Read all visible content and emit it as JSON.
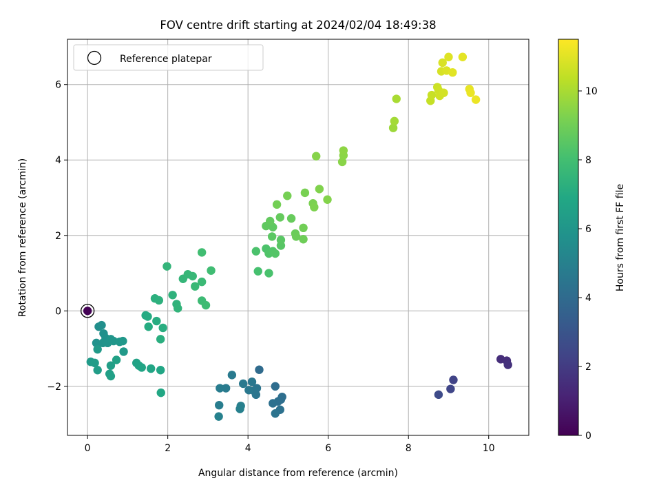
{
  "chart_data": {
    "type": "scatter",
    "title": "FOV centre drift starting at 2024/02/04 18:49:38",
    "xlabel": "Angular distance from reference (arcmin)",
    "ylabel": "Rotation from reference (arcmin)",
    "xlim": [
      -0.5,
      11.0
    ],
    "ylim": [
      -3.3,
      7.2
    ],
    "xticks": [
      0,
      2,
      4,
      6,
      8,
      10
    ],
    "yticks": [
      -2,
      0,
      2,
      4,
      6
    ],
    "grid": true,
    "legend": {
      "position": "top-left",
      "entries": [
        "Reference platepar"
      ]
    },
    "reference_point": {
      "x": 0,
      "y": 0
    },
    "colorbar": {
      "label": "Hours from first FF file",
      "colormap": "viridis",
      "range": [
        0,
        11.5
      ],
      "ticks": [
        0,
        2,
        4,
        6,
        8,
        10
      ]
    },
    "points": [
      {
        "x": 0.0,
        "y": 0.0,
        "c": 0.05
      },
      {
        "x": 10.3,
        "y": -1.28,
        "c": 1.5
      },
      {
        "x": 10.45,
        "y": -1.32,
        "c": 1.55
      },
      {
        "x": 10.48,
        "y": -1.43,
        "c": 1.6
      },
      {
        "x": 9.12,
        "y": -1.83,
        "c": 2.3
      },
      {
        "x": 9.05,
        "y": -2.07,
        "c": 2.4
      },
      {
        "x": 8.75,
        "y": -2.22,
        "c": 2.6
      },
      {
        "x": 4.28,
        "y": -1.56,
        "c": 4.0
      },
      {
        "x": 4.68,
        "y": -2.0,
        "c": 4.1
      },
      {
        "x": 4.82,
        "y": -2.35,
        "c": 4.15
      },
      {
        "x": 4.85,
        "y": -2.28,
        "c": 4.2
      },
      {
        "x": 4.75,
        "y": -2.4,
        "c": 4.2
      },
      {
        "x": 4.62,
        "y": -2.45,
        "c": 4.25
      },
      {
        "x": 4.8,
        "y": -2.62,
        "c": 4.3
      },
      {
        "x": 4.68,
        "y": -2.72,
        "c": 4.35
      },
      {
        "x": 4.22,
        "y": -2.05,
        "c": 4.4
      },
      {
        "x": 4.2,
        "y": -2.22,
        "c": 4.45
      },
      {
        "x": 4.15,
        "y": -2.12,
        "c": 4.5
      },
      {
        "x": 4.1,
        "y": -1.88,
        "c": 4.55
      },
      {
        "x": 4.02,
        "y": -2.1,
        "c": 4.6
      },
      {
        "x": 3.88,
        "y": -1.93,
        "c": 4.65
      },
      {
        "x": 3.6,
        "y": -1.7,
        "c": 4.7
      },
      {
        "x": 3.45,
        "y": -2.05,
        "c": 4.75
      },
      {
        "x": 3.3,
        "y": -2.05,
        "c": 4.8
      },
      {
        "x": 3.28,
        "y": -2.5,
        "c": 4.85
      },
      {
        "x": 3.82,
        "y": -2.52,
        "c": 4.9
      },
      {
        "x": 3.8,
        "y": -2.6,
        "c": 4.95
      },
      {
        "x": 3.27,
        "y": -2.8,
        "c": 5.0
      },
      {
        "x": 0.28,
        "y": -0.42,
        "c": 5.6
      },
      {
        "x": 0.35,
        "y": -0.38,
        "c": 5.65
      },
      {
        "x": 0.4,
        "y": -0.6,
        "c": 5.7
      },
      {
        "x": 0.45,
        "y": -0.72,
        "c": 5.75
      },
      {
        "x": 0.22,
        "y": -0.85,
        "c": 5.8
      },
      {
        "x": 0.38,
        "y": -0.85,
        "c": 5.85
      },
      {
        "x": 0.5,
        "y": -0.85,
        "c": 5.9
      },
      {
        "x": 0.58,
        "y": -0.75,
        "c": 5.95
      },
      {
        "x": 0.65,
        "y": -0.8,
        "c": 6.0
      },
      {
        "x": 0.8,
        "y": -0.82,
        "c": 6.05
      },
      {
        "x": 0.88,
        "y": -0.8,
        "c": 6.1
      },
      {
        "x": 0.9,
        "y": -1.08,
        "c": 6.15
      },
      {
        "x": 0.25,
        "y": -1.02,
        "c": 6.2
      },
      {
        "x": 0.08,
        "y": -1.35,
        "c": 6.25
      },
      {
        "x": 0.18,
        "y": -1.38,
        "c": 6.3
      },
      {
        "x": 0.25,
        "y": -1.57,
        "c": 6.35
      },
      {
        "x": 0.58,
        "y": -1.45,
        "c": 6.4
      },
      {
        "x": 0.55,
        "y": -1.67,
        "c": 6.45
      },
      {
        "x": 0.58,
        "y": -1.73,
        "c": 6.5
      },
      {
        "x": 0.72,
        "y": -1.3,
        "c": 6.55
      },
      {
        "x": 1.22,
        "y": -1.38,
        "c": 6.6
      },
      {
        "x": 1.28,
        "y": -1.45,
        "c": 6.65
      },
      {
        "x": 1.35,
        "y": -1.5,
        "c": 6.7
      },
      {
        "x": 1.58,
        "y": -1.53,
        "c": 6.75
      },
      {
        "x": 1.82,
        "y": -1.57,
        "c": 6.8
      },
      {
        "x": 1.83,
        "y": -2.17,
        "c": 6.85
      },
      {
        "x": 1.45,
        "y": -0.12,
        "c": 6.95
      },
      {
        "x": 1.5,
        "y": -0.15,
        "c": 7.0
      },
      {
        "x": 1.52,
        "y": -0.42,
        "c": 7.05
      },
      {
        "x": 1.72,
        "y": -0.27,
        "c": 7.1
      },
      {
        "x": 1.88,
        "y": -0.45,
        "c": 7.15
      },
      {
        "x": 1.82,
        "y": -0.75,
        "c": 7.2
      },
      {
        "x": 1.68,
        "y": 0.33,
        "c": 7.25
      },
      {
        "x": 1.78,
        "y": 0.28,
        "c": 7.3
      },
      {
        "x": 2.12,
        "y": 0.42,
        "c": 7.35
      },
      {
        "x": 2.22,
        "y": 0.18,
        "c": 7.4
      },
      {
        "x": 2.25,
        "y": 0.07,
        "c": 7.45
      },
      {
        "x": 1.98,
        "y": 1.18,
        "c": 7.5
      },
      {
        "x": 2.38,
        "y": 0.85,
        "c": 7.55
      },
      {
        "x": 2.5,
        "y": 0.97,
        "c": 7.6
      },
      {
        "x": 2.62,
        "y": 0.92,
        "c": 7.65
      },
      {
        "x": 2.68,
        "y": 0.65,
        "c": 7.7
      },
      {
        "x": 2.85,
        "y": 0.77,
        "c": 7.75
      },
      {
        "x": 2.85,
        "y": 0.27,
        "c": 7.8
      },
      {
        "x": 2.95,
        "y": 0.15,
        "c": 7.85
      },
      {
        "x": 3.08,
        "y": 1.07,
        "c": 7.9
      },
      {
        "x": 2.85,
        "y": 1.55,
        "c": 7.95
      },
      {
        "x": 4.25,
        "y": 1.05,
        "c": 8.1
      },
      {
        "x": 4.52,
        "y": 1.0,
        "c": 8.15
      },
      {
        "x": 4.2,
        "y": 1.58,
        "c": 8.2
      },
      {
        "x": 4.45,
        "y": 1.65,
        "c": 8.25
      },
      {
        "x": 4.52,
        "y": 1.52,
        "c": 8.3
      },
      {
        "x": 4.62,
        "y": 1.58,
        "c": 8.35
      },
      {
        "x": 4.68,
        "y": 1.52,
        "c": 8.4
      },
      {
        "x": 4.82,
        "y": 1.73,
        "c": 8.45
      },
      {
        "x": 4.82,
        "y": 1.88,
        "c": 8.5
      },
      {
        "x": 4.6,
        "y": 1.97,
        "c": 8.55
      },
      {
        "x": 4.62,
        "y": 2.22,
        "c": 8.6
      },
      {
        "x": 4.45,
        "y": 2.25,
        "c": 8.65
      },
      {
        "x": 4.55,
        "y": 2.38,
        "c": 8.7
      },
      {
        "x": 4.8,
        "y": 2.48,
        "c": 8.75
      },
      {
        "x": 5.08,
        "y": 2.45,
        "c": 8.8
      },
      {
        "x": 5.18,
        "y": 2.05,
        "c": 8.85
      },
      {
        "x": 5.2,
        "y": 1.97,
        "c": 8.9
      },
      {
        "x": 5.38,
        "y": 1.9,
        "c": 8.95
      },
      {
        "x": 5.38,
        "y": 2.2,
        "c": 9.0
      },
      {
        "x": 4.72,
        "y": 2.82,
        "c": 9.05
      },
      {
        "x": 4.98,
        "y": 3.05,
        "c": 9.1
      },
      {
        "x": 5.42,
        "y": 3.13,
        "c": 9.15
      },
      {
        "x": 5.62,
        "y": 2.85,
        "c": 9.2
      },
      {
        "x": 5.65,
        "y": 2.75,
        "c": 9.25
      },
      {
        "x": 5.78,
        "y": 3.23,
        "c": 9.3
      },
      {
        "x": 5.98,
        "y": 2.95,
        "c": 9.35
      },
      {
        "x": 5.7,
        "y": 4.1,
        "c": 9.4
      },
      {
        "x": 6.35,
        "y": 3.95,
        "c": 9.45
      },
      {
        "x": 6.38,
        "y": 4.12,
        "c": 9.5
      },
      {
        "x": 6.38,
        "y": 4.25,
        "c": 9.55
      },
      {
        "x": 7.62,
        "y": 4.85,
        "c": 9.8
      },
      {
        "x": 7.65,
        "y": 5.03,
        "c": 9.9
      },
      {
        "x": 7.7,
        "y": 5.62,
        "c": 10.0
      },
      {
        "x": 8.55,
        "y": 5.57,
        "c": 10.5
      },
      {
        "x": 8.58,
        "y": 5.72,
        "c": 10.55
      },
      {
        "x": 8.72,
        "y": 5.93,
        "c": 10.6
      },
      {
        "x": 8.75,
        "y": 5.85,
        "c": 10.65
      },
      {
        "x": 8.78,
        "y": 5.7,
        "c": 10.7
      },
      {
        "x": 8.88,
        "y": 5.78,
        "c": 10.75
      },
      {
        "x": 8.82,
        "y": 6.35,
        "c": 10.8
      },
      {
        "x": 8.85,
        "y": 6.58,
        "c": 10.85
      },
      {
        "x": 8.95,
        "y": 6.37,
        "c": 10.9
      },
      {
        "x": 9.0,
        "y": 6.73,
        "c": 10.95
      },
      {
        "x": 9.1,
        "y": 6.32,
        "c": 11.0
      },
      {
        "x": 9.35,
        "y": 6.73,
        "c": 11.05
      },
      {
        "x": 9.52,
        "y": 5.88,
        "c": 11.1
      },
      {
        "x": 9.55,
        "y": 5.78,
        "c": 11.15
      },
      {
        "x": 9.68,
        "y": 5.6,
        "c": 11.2
      }
    ]
  }
}
